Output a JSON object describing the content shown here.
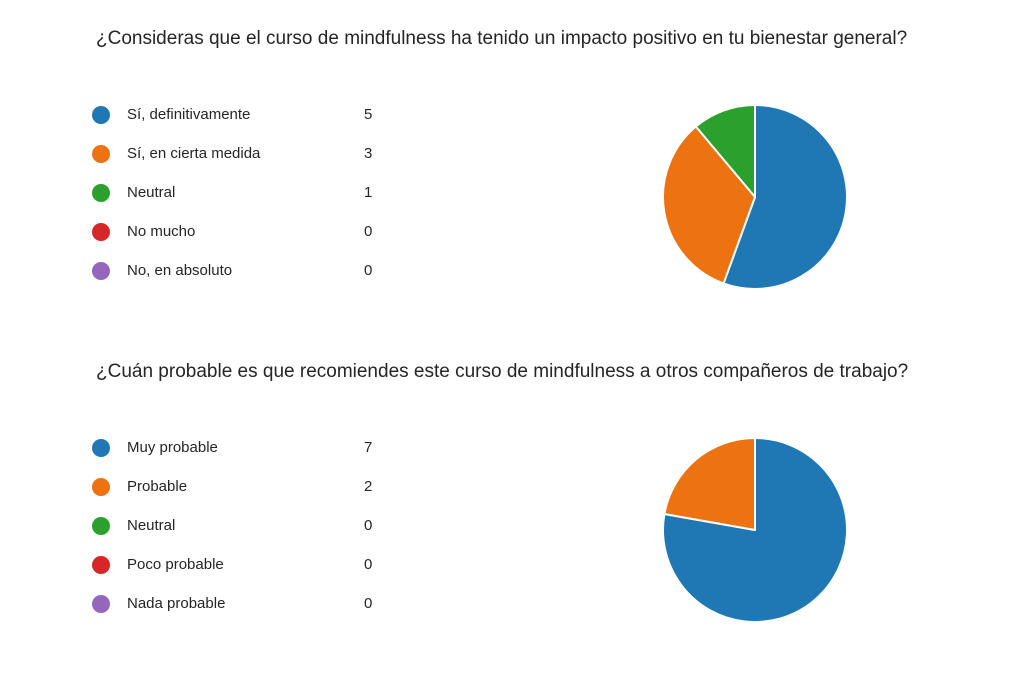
{
  "chart_data": [
    {
      "type": "pie",
      "title": "¿Consideras que el curso de mindfulness ha tenido un impacto positivo en tu bienestar general?",
      "legend_position": "left",
      "categories": [
        "Sí, definitivamente",
        "Sí, en cierta medida",
        "Neutral",
        "No mucho",
        "No, en absoluto"
      ],
      "values": [
        5,
        3,
        1,
        0,
        0
      ],
      "colors": [
        "#1f77b4",
        "#ed7212",
        "#2ca02c",
        "#d62728",
        "#9467bd"
      ]
    },
    {
      "type": "pie",
      "title": "¿Cuán probable es que recomiendes este curso de mindfulness a otros compañeros de trabajo?",
      "legend_position": "left",
      "categories": [
        "Muy probable",
        "Probable",
        "Neutral",
        "Poco probable",
        "Nada probable"
      ],
      "values": [
        7,
        2,
        0,
        0,
        0
      ],
      "colors": [
        "#1f77b4",
        "#ed7212",
        "#2ca02c",
        "#d62728",
        "#9467bd"
      ]
    }
  ]
}
